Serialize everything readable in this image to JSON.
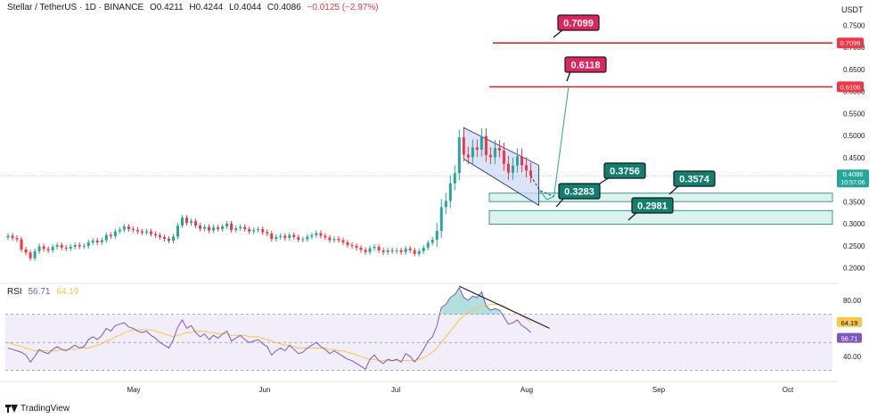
{
  "header": {
    "symbol": "Stellar / TetherUS · 1D · BINANCE",
    "open": "O0.4211",
    "high": "H0.4244",
    "low": "L0.4044",
    "close": "C0.4086",
    "change": "−0.0125 (−2.97%)",
    "currency": "USDT"
  },
  "rsi_header": {
    "label": "RSI",
    "value1": "56.71",
    "value2": "64.19"
  },
  "brand": "TradingView",
  "colors": {
    "up": "#26a69a",
    "down": "#f23645",
    "resistance": "#d32f2f",
    "target_red": "#e0245e",
    "target_green": "#127e6e",
    "zone_fill": "#d6f0ea",
    "channel_fill": "#cdd9f4",
    "rsi": "#7e57c2",
    "rsi_ma": "#f7c548"
  },
  "chart_data": [
    {
      "type": "candlestick",
      "title": "Stellar / TetherUS",
      "x_ticks": [
        "May",
        "Jun",
        "Jul",
        "Aug",
        "Sep",
        "Oct"
      ],
      "y_ticks": [
        "0.7500",
        "0.7000",
        "0.6500",
        "0.6000",
        "0.5500",
        "0.5000",
        "0.4500",
        "0.4000",
        "0.3500",
        "0.3000",
        "0.2500",
        "0.2000"
      ],
      "ylim": [
        0.165,
        0.775
      ],
      "close": [
        0.273,
        0.268,
        0.265,
        0.242,
        0.235,
        0.222,
        0.238,
        0.249,
        0.243,
        0.24,
        0.248,
        0.252,
        0.246,
        0.244,
        0.248,
        0.252,
        0.249,
        0.25,
        0.258,
        0.262,
        0.258,
        0.263,
        0.275,
        0.272,
        0.283,
        0.287,
        0.294,
        0.288,
        0.286,
        0.283,
        0.28,
        0.283,
        0.277,
        0.274,
        0.27,
        0.266,
        0.262,
        0.271,
        0.296,
        0.314,
        0.302,
        0.306,
        0.296,
        0.289,
        0.293,
        0.285,
        0.292,
        0.288,
        0.294,
        0.301,
        0.286,
        0.29,
        0.293,
        0.288,
        0.283,
        0.286,
        0.288,
        0.281,
        0.278,
        0.266,
        0.27,
        0.273,
        0.268,
        0.275,
        0.27,
        0.264,
        0.265,
        0.271,
        0.274,
        0.279,
        0.273,
        0.269,
        0.263,
        0.266,
        0.263,
        0.258,
        0.252,
        0.25,
        0.246,
        0.241,
        0.236,
        0.245,
        0.248,
        0.24,
        0.236,
        0.24,
        0.238,
        0.24,
        0.236,
        0.244,
        0.24,
        0.232,
        0.238,
        0.246,
        0.257,
        0.264,
        0.284,
        0.338,
        0.352,
        0.392,
        0.415,
        0.496,
        0.457,
        0.451,
        0.473,
        0.468,
        0.499,
        0.456,
        0.451,
        0.472,
        0.466,
        0.436,
        0.416,
        0.432,
        0.453,
        0.433,
        0.421,
        0.409
      ],
      "channel_top": [
        0.518,
        0.433
      ],
      "channel_bottom": [
        0.447,
        0.342
      ],
      "projection_target": 0.6118,
      "resistance_levels": [
        0.7099,
        0.6106
      ],
      "resistance_labels": [
        "0.7099",
        "0.6106"
      ],
      "support_zones": [
        [
          0.3505,
          0.3695
        ],
        [
          0.2992,
          0.3302
        ]
      ],
      "callouts": [
        "0.7099",
        "0.6118",
        "0.3756",
        "0.3283",
        "0.3574",
        "0.2981"
      ],
      "last_price": "0.4086",
      "countdown": "10:57:06"
    },
    {
      "type": "line",
      "title": "RSI",
      "y_ticks": [
        "80.00",
        "40.00"
      ],
      "ylim": [
        26,
        92
      ],
      "levels": [
        70,
        50
      ],
      "series": [
        {
          "name": "RSI",
          "values": [
            46,
            45,
            44,
            43,
            41,
            36,
            40,
            45,
            43,
            42,
            45,
            47,
            45,
            44,
            46,
            48,
            46,
            47,
            52,
            54,
            52,
            55,
            60,
            58,
            62,
            63,
            64,
            61,
            60,
            58,
            57,
            58,
            55,
            53,
            50,
            48,
            46,
            52,
            61,
            66,
            60,
            62,
            57,
            54,
            56,
            52,
            55,
            53,
            56,
            58,
            51,
            53,
            55,
            52,
            50,
            51,
            52,
            49,
            47,
            41,
            44,
            46,
            44,
            48,
            45,
            42,
            43,
            46,
            48,
            50,
            47,
            45,
            42,
            44,
            42,
            40,
            38,
            37,
            35,
            33,
            31,
            38,
            41,
            37,
            35,
            38,
            37,
            38,
            36,
            42,
            40,
            36,
            40,
            45,
            51,
            54,
            62,
            75,
            77,
            82,
            84,
            89,
            82,
            80,
            83,
            82,
            86,
            76,
            73,
            74,
            73,
            68,
            63,
            64,
            66,
            62,
            60,
            57
          ]
        },
        {
          "name": "RSI-based MA",
          "values": [
            50,
            49,
            48,
            47,
            46,
            45,
            44,
            44,
            44,
            44,
            44,
            44,
            45,
            45,
            45,
            45,
            46,
            46,
            46,
            47,
            48,
            49,
            51,
            52,
            54,
            55,
            57,
            58,
            59,
            59,
            59,
            59,
            59,
            58,
            57,
            56,
            55,
            54,
            55,
            56,
            57,
            57,
            58,
            58,
            58,
            57,
            57,
            56,
            56,
            56,
            55,
            55,
            55,
            55,
            54,
            54,
            54,
            53,
            52,
            51,
            50,
            49,
            48,
            48,
            47,
            46,
            46,
            46,
            46,
            46,
            46,
            46,
            45,
            45,
            44,
            44,
            43,
            42,
            41,
            40,
            39,
            38,
            38,
            37,
            37,
            37,
            37,
            37,
            37,
            37,
            37,
            37,
            38,
            39,
            41,
            43,
            46,
            50,
            54,
            58,
            62,
            66,
            69,
            71,
            73,
            74,
            76,
            76,
            77,
            77,
            77,
            76,
            74,
            72,
            71,
            69,
            67,
            64
          ]
        }
      ],
      "last_values": [
        "64.19",
        "56.71"
      ]
    }
  ]
}
